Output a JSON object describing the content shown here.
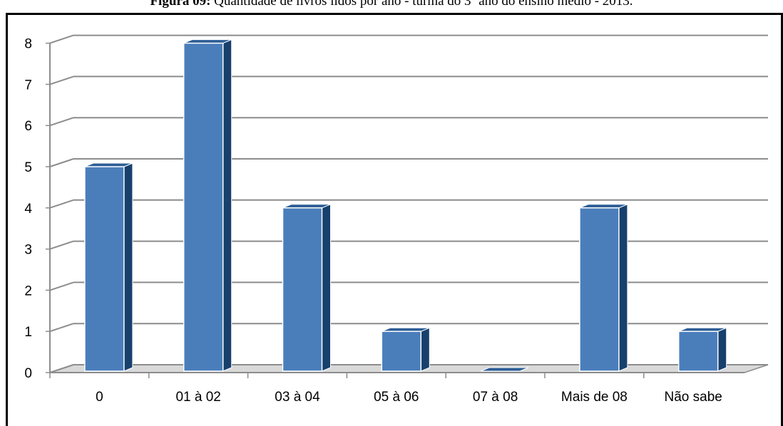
{
  "caption": {
    "label": "Figura 09:",
    "text": "Quantidade de livros lidos por ano - turma do 3º ano do ensino médio - 2013."
  },
  "colors": {
    "bar_front": "#4A7EBB",
    "bar_side": "#17406D",
    "bar_top": "#2C5D96",
    "grid": "#8C8C8C",
    "floor": "#D9D9D9"
  },
  "chart_data": {
    "type": "bar",
    "title": "",
    "xlabel": "",
    "ylabel": "",
    "categories": [
      "0",
      "01 à 02",
      "03 à 04",
      "05 à 06",
      "07 à 08",
      "Mais de 08",
      "Não sabe"
    ],
    "values": [
      5,
      8,
      4,
      1,
      0,
      4,
      1
    ],
    "ylim": [
      0,
      8
    ],
    "yticks": [
      "0",
      "1",
      "2",
      "3",
      "4",
      "5",
      "6",
      "7",
      "8"
    ],
    "grid": true,
    "legend": "none",
    "style": "3d-column"
  }
}
